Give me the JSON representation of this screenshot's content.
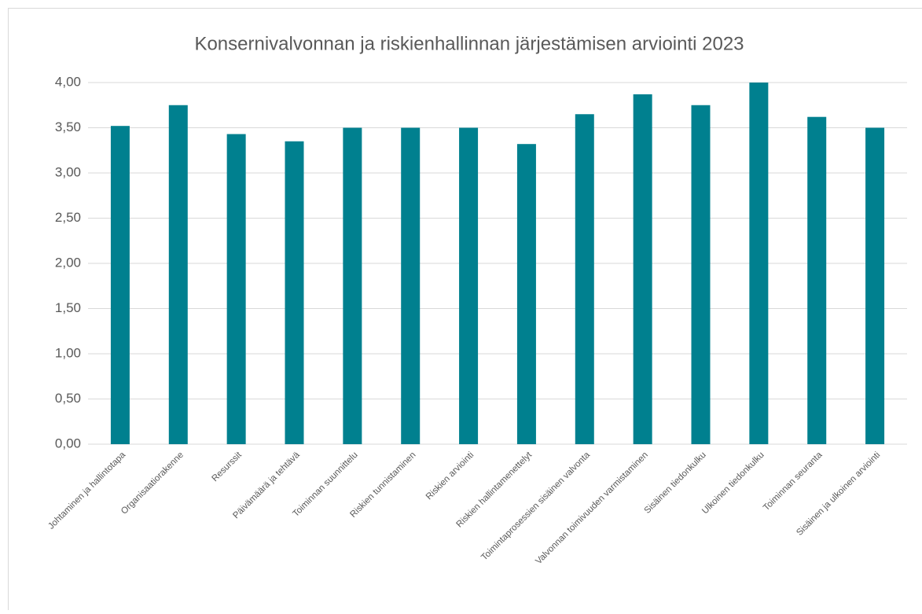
{
  "chart_data": {
    "type": "bar",
    "title": "Konsernivalvonnan ja riskienhallinnan järjestämisen arviointi 2023",
    "categories": [
      "Johtaminen ja hallintotapa",
      "Organisaatiorakenne",
      "Resurssit",
      "Päivämäärä ja tehtävä",
      "Toiminnan suunnittelu",
      "Riskien tunnistaminen",
      "Riskien arviointi",
      "Riskien hallintamenettelyt",
      "Toimintaprosessien sisäinen valvonta",
      "Valvonnan toimivuuden varmistaminen",
      "Sisäinen tiedonkulku",
      "Ulkoinen tiedonkulku",
      "Toiminnan seuranta",
      "Sisäinen ja ulkoinen arviointi"
    ],
    "values": [
      3.52,
      3.75,
      3.43,
      3.35,
      3.5,
      3.5,
      3.5,
      3.32,
      3.65,
      3.87,
      3.75,
      4.0,
      3.62,
      3.5
    ],
    "color": "#00808f",
    "ylim": [
      0,
      4
    ],
    "yticks": [
      {
        "value": 0,
        "label": "0,00"
      },
      {
        "value": 0.5,
        "label": "0,50"
      },
      {
        "value": 1,
        "label": "1,00"
      },
      {
        "value": 1.5,
        "label": "1,50"
      },
      {
        "value": 2,
        "label": "2,00"
      },
      {
        "value": 2.5,
        "label": "2,50"
      },
      {
        "value": 3,
        "label": "3,00"
      },
      {
        "value": 3.5,
        "label": "3,50"
      },
      {
        "value": 4,
        "label": "4,00"
      }
    ],
    "grid": true
  }
}
